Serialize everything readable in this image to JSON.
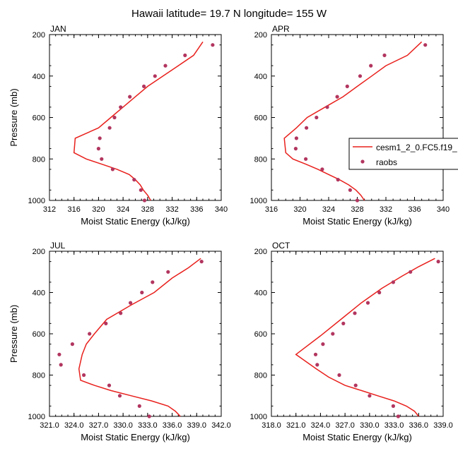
{
  "figure": {
    "title": "Hawaii  latitude= 19.7 N longitude= 155 W"
  },
  "legend": {
    "entries": [
      {
        "label": "cesm1_2_0.FC5.f19_",
        "kind": "line"
      },
      {
        "label": "raobs",
        "kind": "marker"
      }
    ]
  },
  "colors": {
    "model_line": "#e8201c",
    "obs_marker": "#b2365f"
  },
  "chart_data": [
    {
      "type": "line",
      "panel": "JAN",
      "title": "JAN",
      "xlabel": "Moist Static Energy (kJ/kg)",
      "ylabel": "Pressure (mb)",
      "xlim": [
        312,
        340
      ],
      "ylim": [
        1000,
        200
      ],
      "y_reversed": true,
      "xticks": [
        312,
        316,
        320,
        324,
        328,
        332,
        336,
        340
      ],
      "xtick_labels": [
        "312",
        "316",
        "320",
        "324",
        "328",
        "332",
        "336",
        "340"
      ],
      "yticks": [
        200,
        400,
        600,
        800,
        1000
      ],
      "ytick_labels": [
        "200",
        "400",
        "600",
        "800",
        "1000"
      ],
      "series": [
        {
          "name": "cesm1_2_0.FC5.f19_",
          "kind": "line",
          "x": [
            328.5,
            328.0,
            327.3,
            326.8,
            326.0,
            325.0,
            323.0,
            320.5,
            318.0,
            316.0,
            316.2,
            320.0,
            322.0,
            324.0,
            326.0,
            328.0,
            330.5,
            333.0,
            335.5,
            337.0
          ],
          "y": [
            1000,
            975,
            950,
            925,
            900,
            875,
            850,
            825,
            800,
            770,
            700,
            650,
            600,
            550,
            500,
            450,
            400,
            350,
            300,
            235
          ]
        },
        {
          "name": "raobs",
          "kind": "marker",
          "x": [
            327.5,
            326.9,
            325.8,
            322.3,
            320.5,
            320.0,
            320.2,
            321.8,
            322.6,
            323.6,
            325.1,
            327.4,
            329.2,
            330.9,
            334.1,
            338.6
          ],
          "y": [
            1000,
            950,
            900,
            850,
            800,
            750,
            700,
            650,
            600,
            550,
            500,
            450,
            400,
            350,
            300,
            250
          ]
        }
      ]
    },
    {
      "type": "line",
      "panel": "APR",
      "title": "APR",
      "xlabel": "Moist Static Energy (kJ/kg)",
      "ylabel": "",
      "xlim": [
        316,
        340
      ],
      "ylim": [
        1000,
        200
      ],
      "y_reversed": true,
      "xticks": [
        316,
        320,
        324,
        328,
        332,
        336,
        340
      ],
      "xtick_labels": [
        "316",
        "320",
        "324",
        "328",
        "332",
        "336",
        "340"
      ],
      "yticks": [
        200,
        400,
        600,
        800,
        1000
      ],
      "ytick_labels": [
        "200",
        "400",
        "600",
        "800",
        "1000"
      ],
      "series": [
        {
          "name": "cesm1_2_0.FC5.f19_",
          "kind": "line",
          "x": [
            329.0,
            328.5,
            327.8,
            326.8,
            325.5,
            324.0,
            322.5,
            320.8,
            319.0,
            318.0,
            317.8,
            319.5,
            321.0,
            323.5,
            326.0,
            328.0,
            330.0,
            332.0,
            335.0,
            337.0
          ],
          "y": [
            1000,
            975,
            950,
            925,
            900,
            875,
            850,
            825,
            800,
            770,
            700,
            650,
            600,
            550,
            500,
            450,
            400,
            350,
            300,
            235
          ]
        },
        {
          "name": "raobs",
          "kind": "marker",
          "x": [
            328.0,
            327.0,
            325.3,
            323.1,
            320.8,
            319.4,
            319.5,
            320.9,
            322.3,
            323.8,
            325.2,
            326.6,
            328.4,
            329.9,
            331.8,
            337.5
          ],
          "y": [
            1000,
            950,
            900,
            850,
            800,
            750,
            700,
            650,
            600,
            550,
            500,
            450,
            400,
            350,
            300,
            250
          ]
        }
      ]
    },
    {
      "type": "line",
      "panel": "JUL",
      "title": "JUL",
      "xlabel": "Moist Static Energy (kJ/kg)",
      "ylabel": "Pressure (mb)",
      "xlim": [
        321,
        342
      ],
      "ylim": [
        1000,
        200
      ],
      "y_reversed": true,
      "xticks": [
        321,
        324,
        327,
        330,
        333,
        336,
        339,
        342
      ],
      "xtick_labels": [
        "321.0",
        "324.0",
        "327.0",
        "330.0",
        "333.0",
        "336.0",
        "339.0",
        "342.0"
      ],
      "yticks": [
        200,
        400,
        600,
        800,
        1000
      ],
      "ytick_labels": [
        "200",
        "400",
        "600",
        "800",
        "1000"
      ],
      "series": [
        {
          "name": "cesm1_2_0.FC5.f19_",
          "kind": "line",
          "x": [
            337.0,
            336.4,
            335.5,
            333.5,
            331.0,
            328.5,
            326.5,
            324.8,
            324.6,
            325.0,
            325.5,
            326.5,
            328.0,
            331.0,
            333.8,
            336.0,
            338.0,
            339.5
          ],
          "y": [
            1000,
            975,
            950,
            925,
            900,
            875,
            850,
            825,
            770,
            700,
            650,
            600,
            530,
            460,
            400,
            330,
            280,
            235
          ]
        },
        {
          "name": "raobs",
          "kind": "marker",
          "x": [
            333.2,
            332.0,
            329.6,
            328.3,
            325.2,
            322.4,
            322.2,
            323.8,
            325.9,
            327.9,
            329.7,
            330.9,
            332.3,
            333.6,
            335.5,
            339.6
          ],
          "y": [
            1000,
            950,
            900,
            850,
            800,
            750,
            700,
            650,
            600,
            550,
            500,
            450,
            400,
            350,
            300,
            250
          ]
        }
      ]
    },
    {
      "type": "line",
      "panel": "OCT",
      "title": "OCT",
      "xlabel": "Moist Static Energy (kJ/kg)",
      "ylabel": "",
      "xlim": [
        318,
        339
      ],
      "ylim": [
        1000,
        200
      ],
      "y_reversed": true,
      "xticks": [
        318,
        321,
        324,
        327,
        330,
        333,
        336,
        339
      ],
      "xtick_labels": [
        "318.0",
        "321.0",
        "324.0",
        "327.0",
        "330.0",
        "333.0",
        "336.0",
        "339.0"
      ],
      "yticks": [
        200,
        400,
        600,
        800,
        1000
      ],
      "ytick_labels": [
        "200",
        "400",
        "600",
        "800",
        "1000"
      ],
      "series": [
        {
          "name": "cesm1_2_0.FC5.f19_",
          "kind": "line",
          "x": [
            336.0,
            335.5,
            334.5,
            333.0,
            331.0,
            329.0,
            327.0,
            325.0,
            323.5,
            321.0,
            324.0,
            326.5,
            329.0,
            331.5,
            334.0,
            336.0,
            338.0
          ],
          "y": [
            1000,
            975,
            950,
            925,
            900,
            875,
            850,
            810,
            770,
            700,
            610,
            530,
            450,
            380,
            320,
            275,
            235
          ]
        },
        {
          "name": "raobs",
          "kind": "marker",
          "x": [
            333.5,
            332.9,
            330.0,
            328.3,
            326.3,
            323.6,
            323.4,
            324.3,
            325.5,
            326.8,
            328.2,
            329.8,
            331.2,
            332.9,
            335.0,
            338.4
          ],
          "y": [
            1000,
            950,
            900,
            850,
            800,
            750,
            700,
            650,
            600,
            550,
            500,
            450,
            400,
            350,
            300,
            250
          ]
        }
      ]
    }
  ]
}
